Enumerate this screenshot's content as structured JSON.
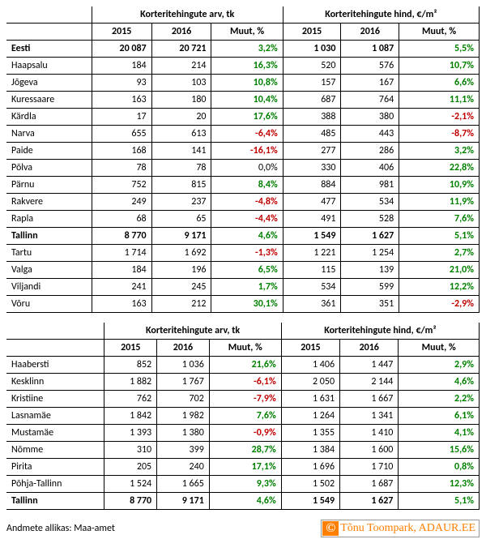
{
  "headers": {
    "group_count": "Korteritehingute arv, tk",
    "group_price": "Korteritehingute hind, €/m²",
    "y2015": "2015",
    "y2016": "2016",
    "change": "Muut, %"
  },
  "table1": [
    {
      "label": "Eesti",
      "bold": true,
      "c15": "20 087",
      "c16": "20 721",
      "cch": "3,2%",
      "cchc": "pos",
      "p15": "1 030",
      "p16": "1 087",
      "pch": "5,5%",
      "pchc": "pos"
    },
    {
      "label": "Haapsalu",
      "c15": "184",
      "c16": "214",
      "cch": "16,3%",
      "cchc": "pos",
      "p15": "520",
      "p16": "576",
      "pch": "10,7%",
      "pchc": "pos"
    },
    {
      "label": "Jõgeva",
      "c15": "93",
      "c16": "103",
      "cch": "10,8%",
      "cchc": "pos",
      "p15": "157",
      "p16": "167",
      "pch": "6,6%",
      "pchc": "pos"
    },
    {
      "label": "Kuressaare",
      "c15": "163",
      "c16": "180",
      "cch": "10,4%",
      "cchc": "pos",
      "p15": "687",
      "p16": "764",
      "pch": "11,1%",
      "pchc": "pos"
    },
    {
      "label": "Kärdla",
      "c15": "17",
      "c16": "20",
      "cch": "17,6%",
      "cchc": "pos",
      "p15": "388",
      "p16": "380",
      "pch": "-2,1%",
      "pchc": "neg"
    },
    {
      "label": "Narva",
      "c15": "655",
      "c16": "613",
      "cch": "-6,4%",
      "cchc": "neg",
      "p15": "485",
      "p16": "443",
      "pch": "-8,7%",
      "pchc": "neg"
    },
    {
      "label": "Paide",
      "c15": "168",
      "c16": "141",
      "cch": "-16,1%",
      "cchc": "neg",
      "p15": "277",
      "p16": "286",
      "pch": "3,2%",
      "pchc": "pos"
    },
    {
      "label": "Põlva",
      "c15": "78",
      "c16": "78",
      "cch": "0,0%",
      "cchc": "zero",
      "p15": "330",
      "p16": "406",
      "pch": "22,8%",
      "pchc": "pos"
    },
    {
      "label": "Pärnu",
      "c15": "752",
      "c16": "815",
      "cch": "8,4%",
      "cchc": "pos",
      "p15": "884",
      "p16": "981",
      "pch": "10,9%",
      "pchc": "pos"
    },
    {
      "label": "Rakvere",
      "c15": "249",
      "c16": "237",
      "cch": "-4,8%",
      "cchc": "neg",
      "p15": "477",
      "p16": "534",
      "pch": "11,9%",
      "pchc": "pos"
    },
    {
      "label": "Rapla",
      "c15": "68",
      "c16": "65",
      "cch": "-4,4%",
      "cchc": "neg",
      "p15": "491",
      "p16": "528",
      "pch": "7,6%",
      "pchc": "pos"
    },
    {
      "label": "Tallinn",
      "bold": true,
      "c15": "8 770",
      "c16": "9 171",
      "cch": "4,6%",
      "cchc": "pos",
      "p15": "1 549",
      "p16": "1 627",
      "pch": "5,1%",
      "pchc": "pos"
    },
    {
      "label": "Tartu",
      "c15": "1 714",
      "c16": "1 692",
      "cch": "-1,3%",
      "cchc": "neg",
      "p15": "1 221",
      "p16": "1 254",
      "pch": "2,7%",
      "pchc": "pos"
    },
    {
      "label": "Valga",
      "c15": "184",
      "c16": "196",
      "cch": "6,5%",
      "cchc": "pos",
      "p15": "115",
      "p16": "139",
      "pch": "21,0%",
      "pchc": "pos"
    },
    {
      "label": "Viljandi",
      "c15": "241",
      "c16": "245",
      "cch": "1,7%",
      "cchc": "pos",
      "p15": "534",
      "p16": "599",
      "pch": "12,2%",
      "pchc": "pos"
    },
    {
      "label": "Võru",
      "c15": "163",
      "c16": "212",
      "cch": "30,1%",
      "cchc": "pos",
      "p15": "361",
      "p16": "351",
      "pch": "-2,9%",
      "pchc": "neg"
    }
  ],
  "table2": [
    {
      "label": "Haabersti",
      "c15": "852",
      "c16": "1 036",
      "cch": "21,6%",
      "cchc": "pos",
      "p15": "1 406",
      "p16": "1 447",
      "pch": "2,9%",
      "pchc": "pos"
    },
    {
      "label": "Kesklinn",
      "c15": "1 882",
      "c16": "1 767",
      "cch": "-6,1%",
      "cchc": "neg",
      "p15": "2 050",
      "p16": "2 144",
      "pch": "4,6%",
      "pchc": "pos"
    },
    {
      "label": "Kristiine",
      "c15": "762",
      "c16": "702",
      "cch": "-7,9%",
      "cchc": "neg",
      "p15": "1 631",
      "p16": "1 667",
      "pch": "2,2%",
      "pchc": "pos"
    },
    {
      "label": "Lasnamäe",
      "c15": "1 842",
      "c16": "1 982",
      "cch": "7,6%",
      "cchc": "pos",
      "p15": "1 264",
      "p16": "1 341",
      "pch": "6,1%",
      "pchc": "pos"
    },
    {
      "label": "Mustamäe",
      "c15": "1 393",
      "c16": "1 380",
      "cch": "-0,9%",
      "cchc": "neg",
      "p15": "1 355",
      "p16": "1 410",
      "pch": "4,1%",
      "pchc": "pos"
    },
    {
      "label": "Nõmme",
      "c15": "310",
      "c16": "399",
      "cch": "28,7%",
      "cchc": "pos",
      "p15": "1 384",
      "p16": "1 600",
      "pch": "15,6%",
      "pchc": "pos"
    },
    {
      "label": "Pirita",
      "c15": "205",
      "c16": "240",
      "cch": "17,1%",
      "cchc": "pos",
      "p15": "1 696",
      "p16": "1 710",
      "pch": "0,8%",
      "pchc": "pos"
    },
    {
      "label": "Põhja-Tallinn",
      "c15": "1 524",
      "c16": "1 665",
      "cch": "9,3%",
      "cchc": "pos",
      "p15": "1 502",
      "p16": "1 687",
      "pch": "12,3%",
      "pchc": "pos"
    },
    {
      "label": "Tallinn",
      "bold": true,
      "c15": "8 770",
      "c16": "9 171",
      "cch": "4,6%",
      "cchc": "pos",
      "p15": "1 549",
      "p16": "1 627",
      "pch": "5,1%",
      "pchc": "pos"
    }
  ],
  "footer": {
    "source": "Andmete allikas: Maa-amet",
    "badge": "Tõnu Toompark, ADAUR.EE"
  },
  "colors": {
    "pos": "#008000",
    "neg": "#c00000",
    "badge_bg": "#ff7f00"
  }
}
